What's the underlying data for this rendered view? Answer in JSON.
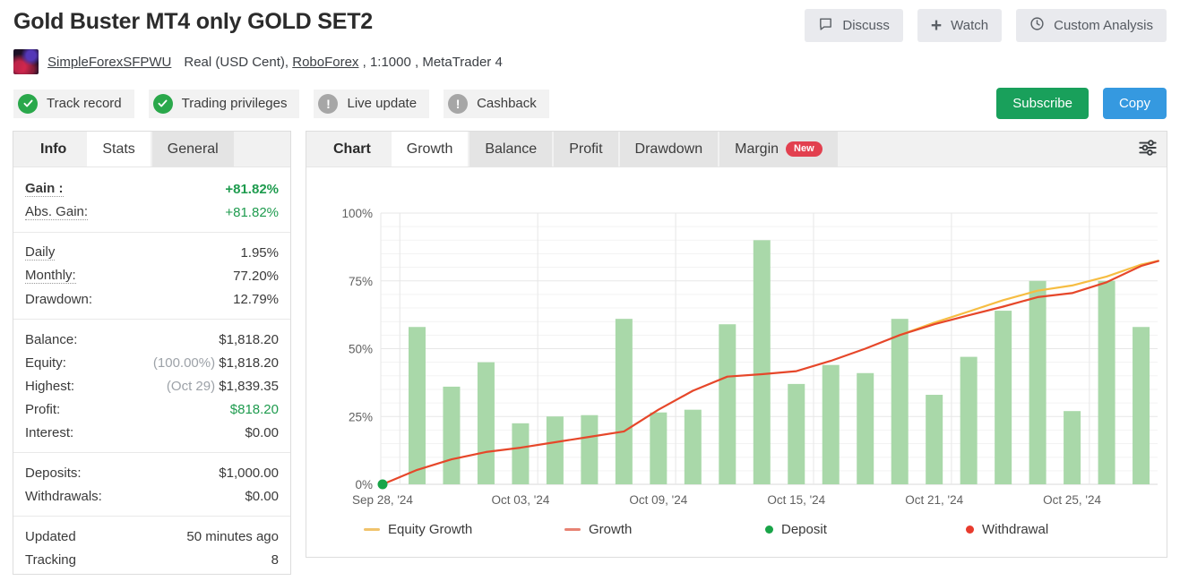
{
  "header": {
    "title": "Gold Buster MT4 only GOLD SET2",
    "actions": [
      {
        "label": "Discuss",
        "icon": "chat-icon"
      },
      {
        "label": "Watch",
        "icon": "plus-icon"
      },
      {
        "label": "Custom Analysis",
        "icon": "clock-icon"
      }
    ]
  },
  "account": {
    "username": "SimpleForexSFPWU",
    "details_pre": "Real (USD Cent),",
    "broker": "RoboForex",
    "details_post": ", 1:1000 , MetaTrader 4"
  },
  "badges": [
    {
      "label": "Track record",
      "status": "ok"
    },
    {
      "label": "Trading privileges",
      "status": "ok"
    },
    {
      "label": "Live update",
      "status": "warn"
    },
    {
      "label": "Cashback",
      "status": "warn"
    }
  ],
  "cta": {
    "subscribe_label": "Subscribe",
    "subscribe_color": "#19a05b",
    "copy_label": "Copy",
    "copy_color": "#3599e0"
  },
  "info_panel": {
    "tabs": [
      {
        "label": "Info"
      },
      {
        "label": "Stats",
        "active": true
      },
      {
        "label": "General"
      }
    ],
    "groups": [
      [
        {
          "label": "Gain :",
          "dotted": true,
          "bold": true,
          "value": "+81.82%",
          "value_class": "green bold"
        },
        {
          "label": "Abs. Gain:",
          "dotted": true,
          "value": "+81.82%",
          "value_class": "green"
        }
      ],
      [
        {
          "label": "Daily",
          "dotted": true,
          "value": "1.95%"
        },
        {
          "label": "Monthly:",
          "dotted": true,
          "value": "77.20%"
        },
        {
          "label": "Drawdown:",
          "value": "12.79%"
        }
      ],
      [
        {
          "label": "Balance:",
          "value": "$1,818.20"
        },
        {
          "label": "Equity:",
          "value_prefix": "(100.00%) ",
          "value": "$1,818.20"
        },
        {
          "label": "Highest:",
          "value_prefix": "(Oct 29) ",
          "value": "$1,839.35"
        },
        {
          "label": "Profit:",
          "value": "$818.20",
          "value_class": "green"
        },
        {
          "label": "Interest:",
          "value": "$0.00"
        }
      ],
      [
        {
          "label": "Deposits:",
          "value": "$1,000.00"
        },
        {
          "label": "Withdrawals:",
          "value": "$0.00"
        }
      ],
      [
        {
          "label": "Updated",
          "value": "50 minutes ago"
        },
        {
          "label": "Tracking",
          "value": "8"
        }
      ]
    ]
  },
  "chart_panel": {
    "tabs": [
      {
        "label": "Chart",
        "plain": true
      },
      {
        "label": "Growth",
        "active": true
      },
      {
        "label": "Balance"
      },
      {
        "label": "Profit"
      },
      {
        "label": "Drawdown"
      },
      {
        "label": "Margin",
        "badge": "New"
      }
    ]
  },
  "chart_data": {
    "type": "bar+line",
    "title": "Growth",
    "ylim": [
      0,
      100
    ],
    "grid": true,
    "yticks": [
      {
        "v": 0,
        "label": "0%"
      },
      {
        "v": 25,
        "label": "25%"
      },
      {
        "v": 50,
        "label": "50%"
      },
      {
        "v": 75,
        "label": "75%"
      },
      {
        "v": 100,
        "label": "100%"
      }
    ],
    "xticks": [
      {
        "i": 0,
        "label": "Sep 28, '24"
      },
      {
        "i": 4,
        "label": "Oct 03, '24"
      },
      {
        "i": 8,
        "label": "Oct 09, '24"
      },
      {
        "i": 12,
        "label": "Oct 15, '24"
      },
      {
        "i": 16,
        "label": "Oct 21, '24"
      },
      {
        "i": 20,
        "label": "Oct 25, '24"
      }
    ],
    "bars": {
      "name": "Daily gain bars (%)",
      "color": "#a9d8a9",
      "start_index": 1,
      "values": [
        58,
        36,
        45,
        22.5,
        25,
        25.5,
        61,
        26.5,
        27.5,
        59,
        90,
        37,
        44,
        41,
        61,
        33,
        47,
        64,
        75,
        27,
        75,
        58
      ]
    },
    "series": [
      {
        "name": "Equity Growth",
        "color": "#f6bd42",
        "points": [
          [
            15,
            55
          ],
          [
            16,
            59.6
          ],
          [
            17,
            63.7
          ],
          [
            18,
            67.9
          ],
          [
            19,
            71.4
          ],
          [
            20,
            73.3
          ],
          [
            21,
            76.6
          ],
          [
            22,
            81
          ],
          [
            22.5,
            82.4
          ]
        ]
      },
      {
        "name": "Growth",
        "color": "#e6472a",
        "points": [
          [
            0,
            0
          ],
          [
            1,
            5.3
          ],
          [
            2,
            9.2
          ],
          [
            3,
            11.9
          ],
          [
            4,
            13.5
          ],
          [
            5,
            15.5
          ],
          [
            6,
            17.5
          ],
          [
            7,
            19.5
          ],
          [
            8,
            27.5
          ],
          [
            9,
            34.5
          ],
          [
            10,
            39.7
          ],
          [
            11,
            40.6
          ],
          [
            12,
            41.7
          ],
          [
            13,
            45.5
          ],
          [
            14,
            50
          ],
          [
            15,
            55
          ],
          [
            16,
            59
          ],
          [
            17,
            62.3
          ],
          [
            18,
            65.5
          ],
          [
            19,
            69
          ],
          [
            20,
            70.5
          ],
          [
            21,
            74.5
          ],
          [
            22,
            80.5
          ],
          [
            22.5,
            82.3
          ]
        ]
      }
    ],
    "markers": [
      {
        "type": "Deposit",
        "i": 0,
        "v": 0,
        "color": "#19a448"
      }
    ],
    "legend_position": "bottom",
    "legend": [
      {
        "label": "Equity Growth",
        "swatch": "line",
        "color": "#f0c36c"
      },
      {
        "label": "Growth",
        "swatch": "line",
        "color": "#e78273"
      },
      {
        "label": "Deposit",
        "swatch": "dot",
        "color": "#19a448"
      },
      {
        "label": "Withdrawal",
        "swatch": "dot",
        "color": "#e83b2d"
      }
    ]
  }
}
